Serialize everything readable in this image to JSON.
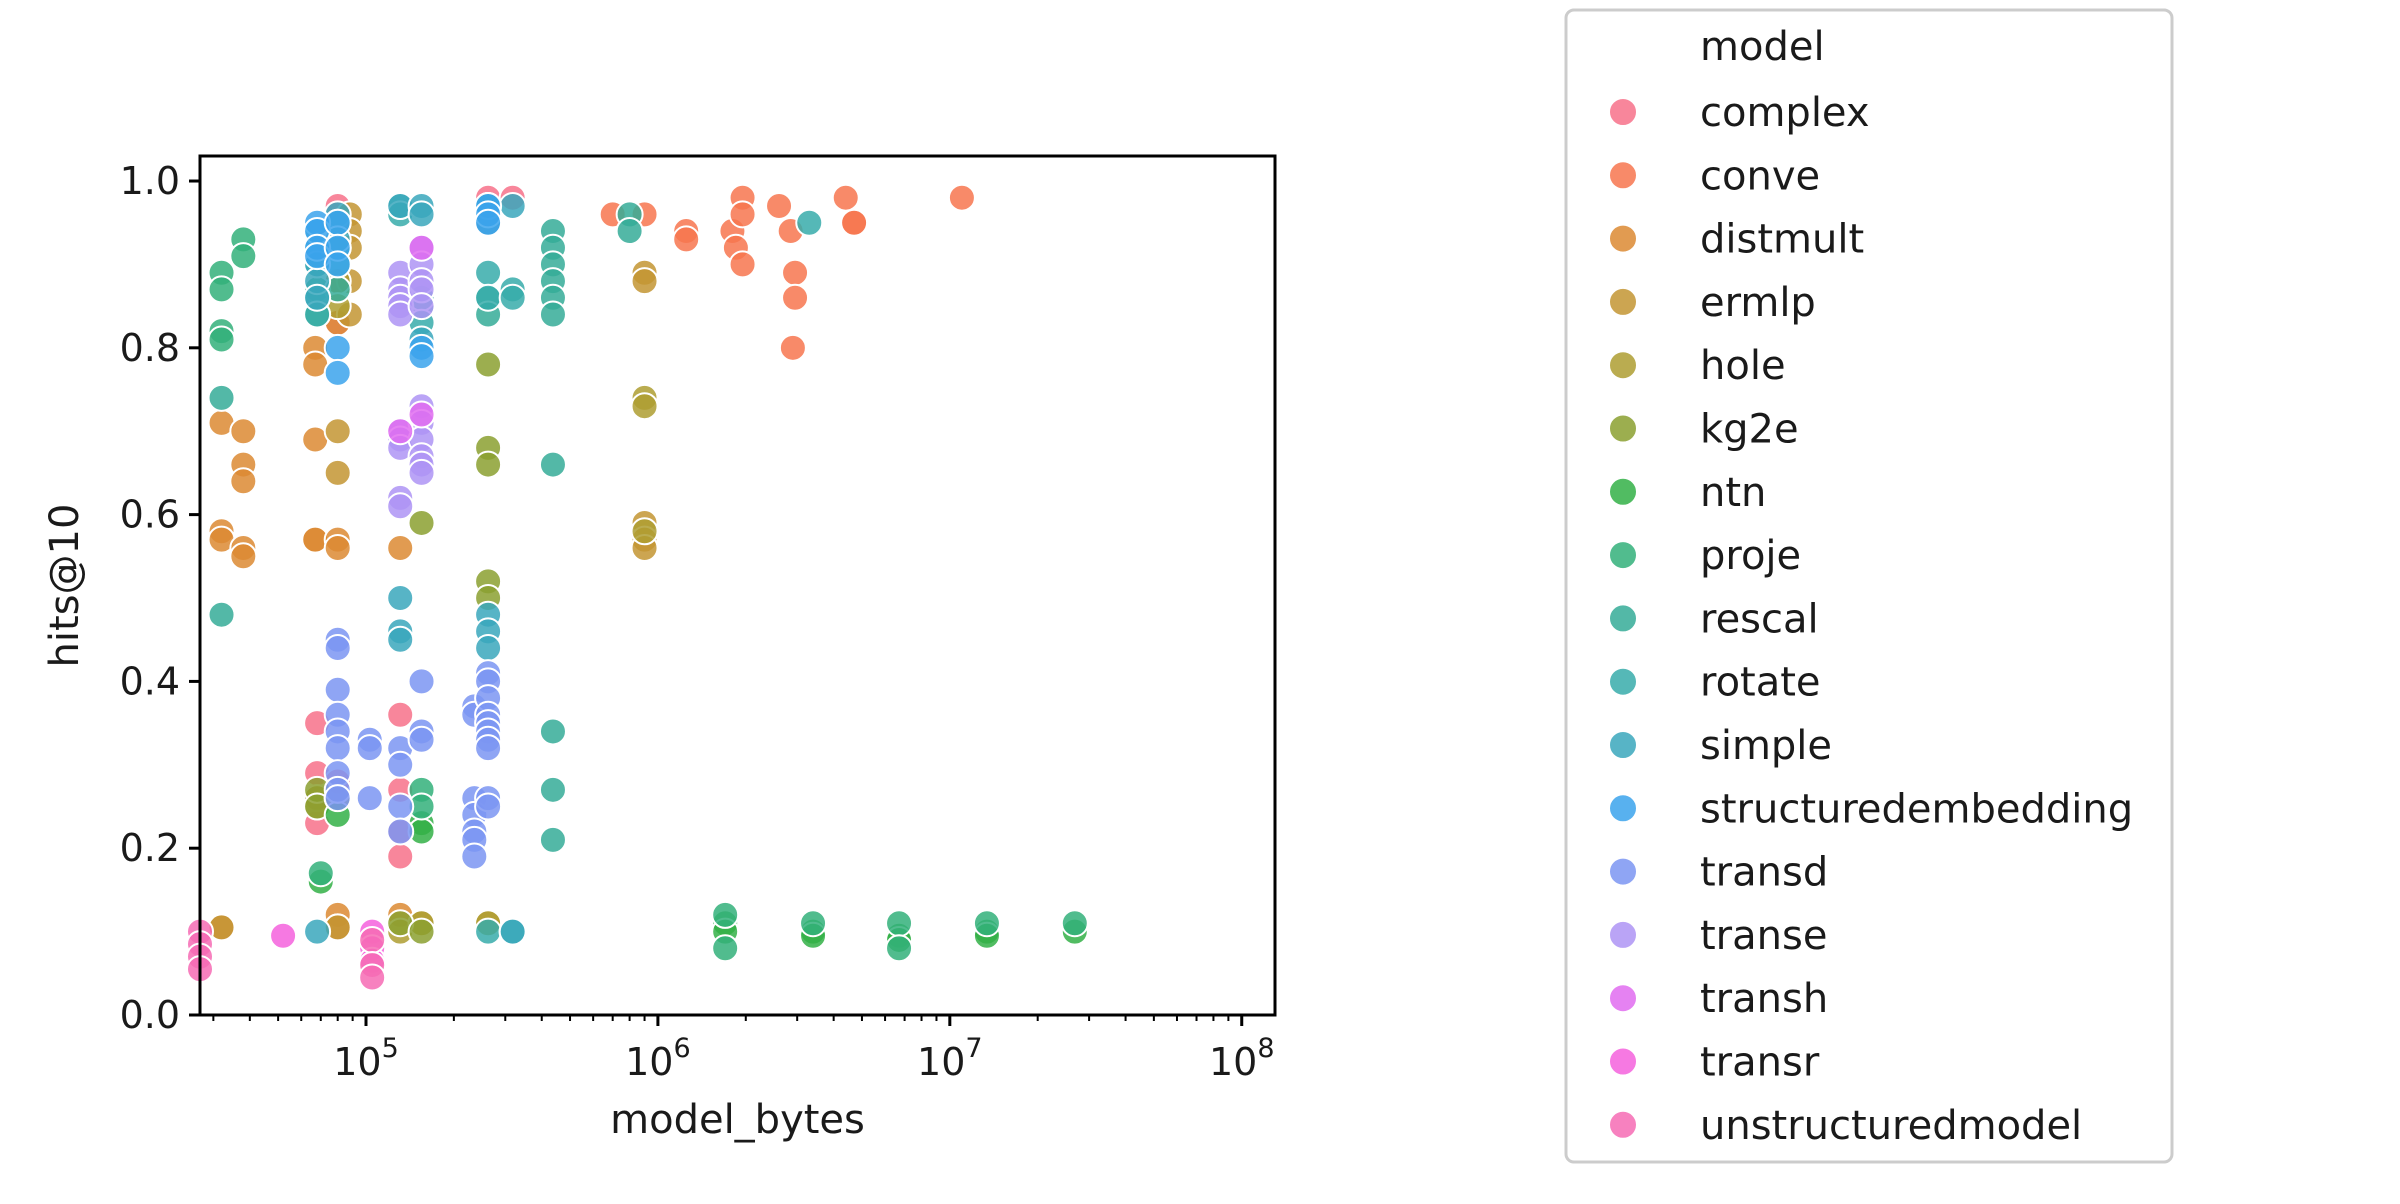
{
  "chart_data": {
    "type": "scatter",
    "title": "",
    "xlabel": "model_bytes",
    "ylabel": "hits@10",
    "xscale": "log",
    "xlim": [
      27000,
      130000000
    ],
    "ylim": [
      0.0,
      1.03
    ],
    "grid": false,
    "x_ticks": [
      {
        "value": 100000,
        "base": "10",
        "exp": "5"
      },
      {
        "value": 1000000,
        "base": "10",
        "exp": "6"
      },
      {
        "value": 10000000,
        "base": "10",
        "exp": "7"
      },
      {
        "value": 100000000,
        "base": "10",
        "exp": "8"
      }
    ],
    "y_ticks": [
      {
        "value": 0.0,
        "label": "0.0"
      },
      {
        "value": 0.2,
        "label": "0.2"
      },
      {
        "value": 0.4,
        "label": "0.4"
      },
      {
        "value": 0.6,
        "label": "0.6"
      },
      {
        "value": 0.8,
        "label": "0.8"
      },
      {
        "value": 1.0,
        "label": "1.0"
      }
    ],
    "legend": {
      "title": "model",
      "placement": "outside right"
    },
    "series": [
      {
        "name": "complex",
        "color": "#f77189",
        "points": [
          [
            68000,
            0.35
          ],
          [
            68000,
            0.29
          ],
          [
            68000,
            0.26
          ],
          [
            68000,
            0.23
          ],
          [
            80000,
            0.97
          ],
          [
            80000,
            0.95
          ],
          [
            80000,
            0.88
          ],
          [
            80000,
            0.83
          ],
          [
            80000,
            0.28
          ],
          [
            131000,
            0.36
          ],
          [
            131000,
            0.27
          ],
          [
            131000,
            0.22
          ],
          [
            131000,
            0.19
          ],
          [
            262000,
            0.98
          ],
          [
            262000,
            0.95
          ],
          [
            318000,
            0.98
          ]
        ]
      },
      {
        "name": "conve",
        "color": "#f7754f",
        "points": [
          [
            700000,
            0.96
          ],
          [
            900000,
            0.96
          ],
          [
            1250000,
            0.94
          ],
          [
            1250000,
            0.93
          ],
          [
            1800000,
            0.94
          ],
          [
            1850000,
            0.92
          ],
          [
            1950000,
            0.98
          ],
          [
            1950000,
            0.96
          ],
          [
            1950000,
            0.9
          ],
          [
            2600000,
            0.97
          ],
          [
            2850000,
            0.94
          ],
          [
            2950000,
            0.89
          ],
          [
            2950000,
            0.86
          ],
          [
            2900000,
            0.8
          ],
          [
            4400000,
            0.98
          ],
          [
            4700000,
            0.95
          ],
          [
            4700000,
            0.95
          ],
          [
            11000000,
            0.98
          ]
        ]
      },
      {
        "name": "distmult",
        "color": "#dc8932",
        "points": [
          [
            32000,
            0.71
          ],
          [
            32000,
            0.58
          ],
          [
            32000,
            0.57
          ],
          [
            32000,
            0.105
          ],
          [
            38000,
            0.7
          ],
          [
            38000,
            0.66
          ],
          [
            38000,
            0.64
          ],
          [
            38000,
            0.56
          ],
          [
            38000,
            0.55
          ],
          [
            67000,
            0.8
          ],
          [
            67000,
            0.78
          ],
          [
            67000,
            0.69
          ],
          [
            67000,
            0.57
          ],
          [
            67000,
            0.57
          ],
          [
            80000,
            0.83
          ],
          [
            80000,
            0.57
          ],
          [
            80000,
            0.56
          ],
          [
            80000,
            0.12
          ],
          [
            80000,
            0.105
          ],
          [
            131000,
            0.56
          ],
          [
            131000,
            0.12
          ]
        ]
      },
      {
        "name": "ermlp",
        "color": "#c39532",
        "points": [
          [
            32000,
            0.105
          ],
          [
            80000,
            0.7
          ],
          [
            80000,
            0.65
          ],
          [
            80000,
            0.105
          ],
          [
            88000,
            0.96
          ],
          [
            88000,
            0.94
          ],
          [
            88000,
            0.92
          ],
          [
            88000,
            0.88
          ],
          [
            88000,
            0.84
          ],
          [
            155000,
            0.11
          ],
          [
            262000,
            0.11
          ],
          [
            900000,
            0.89
          ],
          [
            900000,
            0.88
          ],
          [
            900000,
            0.59
          ],
          [
            900000,
            0.57
          ],
          [
            900000,
            0.56
          ]
        ]
      },
      {
        "name": "hole",
        "color": "#ae9d31",
        "points": [
          [
            68000,
            0.26
          ],
          [
            68000,
            0.25
          ],
          [
            80000,
            0.88
          ],
          [
            80000,
            0.85
          ],
          [
            131000,
            0.1
          ],
          [
            155000,
            0.11
          ],
          [
            262000,
            0.11
          ],
          [
            900000,
            0.74
          ],
          [
            900000,
            0.73
          ],
          [
            900000,
            0.58
          ]
        ]
      },
      {
        "name": "kg2e",
        "color": "#8ba030",
        "points": [
          [
            68000,
            0.27
          ],
          [
            68000,
            0.25
          ],
          [
            80000,
            0.26
          ],
          [
            131000,
            0.11
          ],
          [
            155000,
            0.59
          ],
          [
            155000,
            0.1
          ],
          [
            262000,
            0.78
          ],
          [
            262000,
            0.68
          ],
          [
            262000,
            0.66
          ],
          [
            262000,
            0.52
          ],
          [
            262000,
            0.5
          ]
        ]
      },
      {
        "name": "ntn",
        "color": "#33b047",
        "points": [
          [
            70000,
            0.16
          ],
          [
            80000,
            0.24
          ],
          [
            155000,
            0.23
          ],
          [
            155000,
            0.22
          ],
          [
            1700000,
            0.11
          ],
          [
            1700000,
            0.1
          ],
          [
            3400000,
            0.1
          ],
          [
            3400000,
            0.095
          ],
          [
            6700000,
            0.095
          ],
          [
            6700000,
            0.09
          ],
          [
            13400000,
            0.1
          ],
          [
            13400000,
            0.095
          ],
          [
            26800000,
            0.1
          ]
        ]
      },
      {
        "name": "proje",
        "color": "#33b07a",
        "points": [
          [
            32000,
            0.89
          ],
          [
            32000,
            0.87
          ],
          [
            32000,
            0.82
          ],
          [
            32000,
            0.81
          ],
          [
            38000,
            0.93
          ],
          [
            38000,
            0.91
          ],
          [
            68000,
            0.87
          ],
          [
            68000,
            0.84
          ],
          [
            70000,
            0.17
          ],
          [
            155000,
            0.27
          ],
          [
            155000,
            0.25
          ],
          [
            1700000,
            0.12
          ],
          [
            1700000,
            0.08
          ],
          [
            3400000,
            0.11
          ],
          [
            6700000,
            0.11
          ],
          [
            6700000,
            0.08
          ],
          [
            13400000,
            0.11
          ],
          [
            26800000,
            0.11
          ]
        ]
      },
      {
        "name": "rescal",
        "color": "#35ac98",
        "points": [
          [
            32000,
            0.74
          ],
          [
            32000,
            0.48
          ],
          [
            68000,
            0.9
          ],
          [
            80000,
            0.92
          ],
          [
            80000,
            0.9
          ],
          [
            80000,
            0.87
          ],
          [
            155000,
            0.85
          ],
          [
            262000,
            0.97
          ],
          [
            262000,
            0.86
          ],
          [
            262000,
            0.84
          ],
          [
            437000,
            0.94
          ],
          [
            437000,
            0.92
          ],
          [
            437000,
            0.9
          ],
          [
            437000,
            0.88
          ],
          [
            437000,
            0.86
          ],
          [
            437000,
            0.84
          ],
          [
            437000,
            0.66
          ],
          [
            437000,
            0.34
          ],
          [
            437000,
            0.27
          ],
          [
            437000,
            0.21
          ],
          [
            800000,
            0.96
          ],
          [
            800000,
            0.94
          ]
        ]
      },
      {
        "name": "rotate",
        "color": "#37abaa",
        "points": [
          [
            68000,
            0.86
          ],
          [
            68000,
            0.84
          ],
          [
            131000,
            0.97
          ],
          [
            131000,
            0.96
          ],
          [
            155000,
            0.86
          ],
          [
            155000,
            0.83
          ],
          [
            262000,
            0.89
          ],
          [
            262000,
            0.86
          ],
          [
            262000,
            0.1
          ],
          [
            318000,
            0.87
          ],
          [
            318000,
            0.86
          ],
          [
            318000,
            0.1
          ],
          [
            3300000,
            0.95
          ]
        ]
      },
      {
        "name": "simple",
        "color": "#39a7bc",
        "points": [
          [
            68000,
            0.94
          ],
          [
            68000,
            0.92
          ],
          [
            68000,
            0.9
          ],
          [
            68000,
            0.88
          ],
          [
            68000,
            0.86
          ],
          [
            68000,
            0.1
          ],
          [
            80000,
            0.96
          ],
          [
            80000,
            0.95
          ],
          [
            80000,
            0.93
          ],
          [
            131000,
            0.97
          ],
          [
            131000,
            0.5
          ],
          [
            131000,
            0.46
          ],
          [
            131000,
            0.45
          ],
          [
            155000,
            0.97
          ],
          [
            155000,
            0.96
          ],
          [
            155000,
            0.81
          ],
          [
            262000,
            0.97
          ],
          [
            262000,
            0.95
          ],
          [
            262000,
            0.48
          ],
          [
            262000,
            0.46
          ],
          [
            262000,
            0.44
          ],
          [
            318000,
            0.97
          ],
          [
            318000,
            0.1
          ]
        ]
      },
      {
        "name": "structuredembedding",
        "color": "#3ba3ec",
        "points": [
          [
            68000,
            0.95
          ],
          [
            68000,
            0.94
          ],
          [
            68000,
            0.92
          ],
          [
            68000,
            0.91
          ],
          [
            80000,
            0.8
          ],
          [
            80000,
            0.77
          ],
          [
            80000,
            0.95
          ],
          [
            80000,
            0.92
          ],
          [
            80000,
            0.9
          ],
          [
            155000,
            0.8
          ],
          [
            155000,
            0.79
          ],
          [
            262000,
            0.97
          ],
          [
            262000,
            0.96
          ],
          [
            262000,
            0.95
          ]
        ]
      },
      {
        "name": "transd",
        "color": "#7b95f2",
        "points": [
          [
            80000,
            0.45
          ],
          [
            80000,
            0.44
          ],
          [
            80000,
            0.39
          ],
          [
            80000,
            0.36
          ],
          [
            80000,
            0.34
          ],
          [
            80000,
            0.32
          ],
          [
            80000,
            0.29
          ],
          [
            80000,
            0.27
          ],
          [
            80000,
            0.26
          ],
          [
            103000,
            0.33
          ],
          [
            103000,
            0.32
          ],
          [
            103000,
            0.26
          ],
          [
            131000,
            0.32
          ],
          [
            131000,
            0.3
          ],
          [
            131000,
            0.25
          ],
          [
            131000,
            0.22
          ],
          [
            155000,
            0.4
          ],
          [
            155000,
            0.34
          ],
          [
            155000,
            0.33
          ],
          [
            235000,
            0.37
          ],
          [
            235000,
            0.36
          ],
          [
            235000,
            0.26
          ],
          [
            235000,
            0.24
          ],
          [
            235000,
            0.22
          ],
          [
            235000,
            0.21
          ],
          [
            235000,
            0.19
          ],
          [
            262000,
            0.41
          ],
          [
            262000,
            0.4
          ],
          [
            262000,
            0.38
          ],
          [
            262000,
            0.36
          ],
          [
            262000,
            0.35
          ],
          [
            262000,
            0.34
          ],
          [
            262000,
            0.33
          ],
          [
            262000,
            0.32
          ],
          [
            262000,
            0.26
          ],
          [
            262000,
            0.25
          ]
        ]
      },
      {
        "name": "transe",
        "color": "#ae94f4",
        "points": [
          [
            131000,
            0.89
          ],
          [
            131000,
            0.87
          ],
          [
            131000,
            0.86
          ],
          [
            131000,
            0.85
          ],
          [
            131000,
            0.84
          ],
          [
            131000,
            0.7
          ],
          [
            131000,
            0.69
          ],
          [
            131000,
            0.68
          ],
          [
            131000,
            0.62
          ],
          [
            131000,
            0.61
          ],
          [
            155000,
            0.92
          ],
          [
            155000,
            0.9
          ],
          [
            155000,
            0.88
          ],
          [
            155000,
            0.87
          ],
          [
            155000,
            0.85
          ],
          [
            155000,
            0.73
          ],
          [
            155000,
            0.71
          ],
          [
            155000,
            0.69
          ],
          [
            155000,
            0.67
          ],
          [
            155000,
            0.66
          ],
          [
            155000,
            0.65
          ]
        ]
      },
      {
        "name": "transh",
        "color": "#e16cf0",
        "points": [
          [
            131000,
            0.7
          ],
          [
            155000,
            0.72
          ],
          [
            155000,
            0.92
          ]
        ]
      },
      {
        "name": "transr",
        "color": "#f561dd",
        "points": [
          [
            52000,
            0.095
          ],
          [
            105000,
            0.1
          ],
          [
            105000,
            0.08
          ],
          [
            105000,
            0.065
          ]
        ]
      },
      {
        "name": "unstructuredmodel",
        "color": "#f66bb4",
        "points": [
          [
            27000,
            0.1
          ],
          [
            27000,
            0.085
          ],
          [
            27000,
            0.07
          ],
          [
            27000,
            0.055
          ],
          [
            105000,
            0.09
          ],
          [
            105000,
            0.06
          ],
          [
            105000,
            0.045
          ]
        ]
      }
    ]
  }
}
